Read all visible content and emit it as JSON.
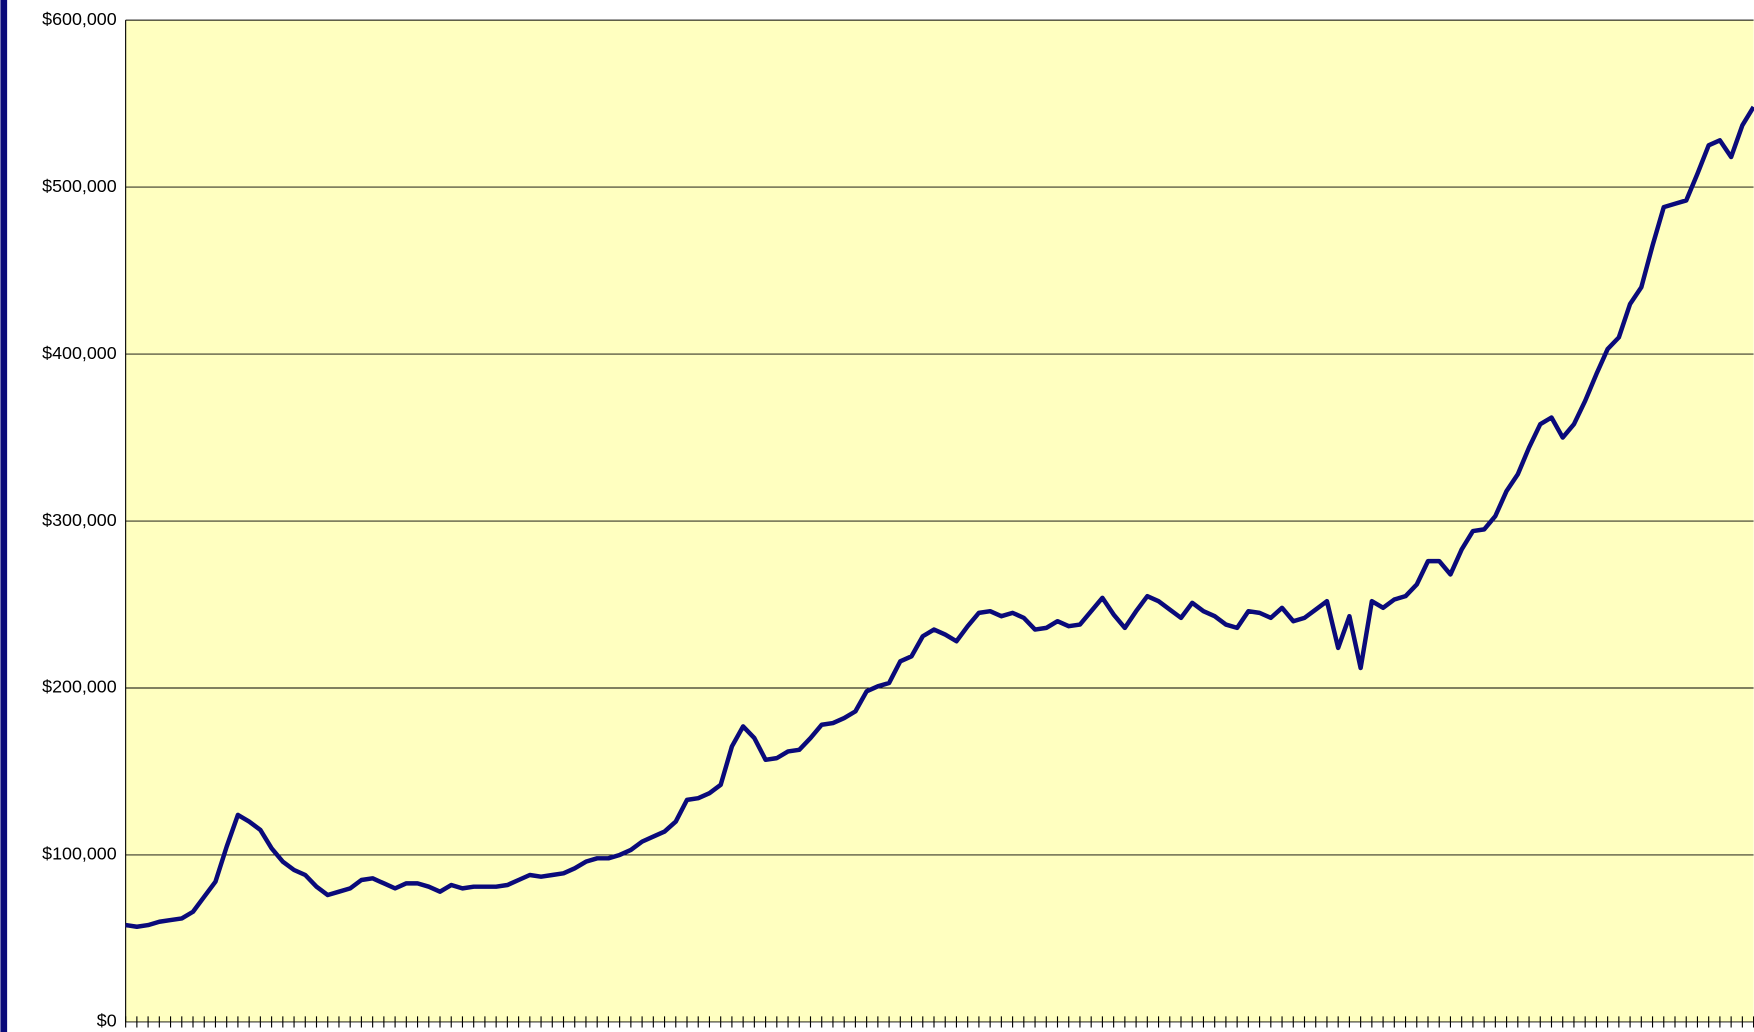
{
  "chart_data": {
    "type": "line",
    "categories": [
      null,
      null,
      null,
      null,
      null,
      null,
      null,
      null,
      null,
      null,
      null,
      null,
      null,
      null,
      null,
      null,
      null,
      null,
      null,
      null,
      null,
      null,
      null,
      null,
      null,
      null,
      null,
      null,
      null,
      null,
      null,
      null,
      null,
      null,
      null,
      null,
      null,
      null,
      null,
      null,
      null,
      null,
      null,
      null,
      null,
      null,
      null,
      null,
      null,
      null,
      null,
      null,
      null,
      null,
      null,
      null,
      null,
      null,
      null,
      null,
      null,
      null,
      null,
      null,
      null,
      null,
      null,
      null,
      null,
      null,
      null,
      null,
      null,
      null,
      null,
      null,
      null,
      null,
      null,
      null,
      null,
      null,
      null,
      null,
      null,
      null,
      null,
      null,
      null,
      null,
      null,
      null,
      null,
      null,
      null,
      null,
      null,
      null,
      null,
      null,
      null,
      null,
      null,
      null,
      null,
      null,
      null,
      null,
      null,
      null,
      null,
      null,
      null,
      null,
      null,
      null,
      null,
      null,
      null,
      null,
      null,
      null,
      null,
      null,
      null,
      null,
      null,
      null,
      null,
      null,
      null,
      null,
      null,
      null,
      null,
      null,
      null,
      null,
      null,
      null,
      null,
      null,
      null,
      null,
      null,
      null
    ],
    "values": [
      58000,
      57000,
      58000,
      60000,
      61000,
      62000,
      66000,
      75000,
      84000,
      105000,
      124000,
      120000,
      115000,
      104000,
      96000,
      91000,
      88000,
      81000,
      76000,
      78000,
      80000,
      85000,
      86000,
      83000,
      80000,
      83000,
      83000,
      81000,
      78000,
      82000,
      80000,
      81000,
      81000,
      81000,
      82000,
      85000,
      88000,
      87000,
      88000,
      89000,
      92000,
      96000,
      98000,
      98000,
      100000,
      103000,
      108000,
      111000,
      114000,
      120000,
      133000,
      134000,
      137000,
      142000,
      165000,
      177000,
      170000,
      157000,
      158000,
      162000,
      163000,
      170000,
      178000,
      179000,
      182000,
      186000,
      198000,
      201000,
      203000,
      216000,
      219000,
      231000,
      235000,
      232000,
      228000,
      237000,
      245000,
      246000,
      243000,
      245000,
      242000,
      235000,
      236000,
      240000,
      237000,
      238000,
      246000,
      254000,
      244000,
      236000,
      246000,
      255000,
      252000,
      247000,
      242000,
      251000,
      246000,
      243000,
      238000,
      236000,
      246000,
      245000,
      242000,
      248000,
      240000,
      242000,
      247000,
      252000,
      224000,
      243000,
      212000,
      252000,
      248000,
      253000,
      255000,
      262000,
      276000,
      276000,
      268000,
      283000,
      294000,
      295000,
      303000,
      318000,
      328000,
      344000,
      358000,
      362000,
      350000,
      358000,
      372000,
      388000,
      403000,
      410000,
      430000,
      440000,
      465000,
      488000,
      490000,
      492000,
      508000,
      525000,
      528000,
      518000,
      537000,
      548000
    ],
    "color": "#0a0a7a",
    "background": "#ffffc0",
    "ylim": [
      0,
      600000
    ],
    "yticks": [
      {
        "value": 0,
        "label": "$0"
      },
      {
        "value": 100000,
        "label": "$100,000"
      },
      {
        "value": 200000,
        "label": "$200,000"
      },
      {
        "value": 300000,
        "label": "$300,000"
      },
      {
        "value": 400000,
        "label": "$400,000"
      },
      {
        "value": 500000,
        "label": "$500,000"
      },
      {
        "value": 600000,
        "label": "$600,000"
      }
    ],
    "grid": true
  }
}
